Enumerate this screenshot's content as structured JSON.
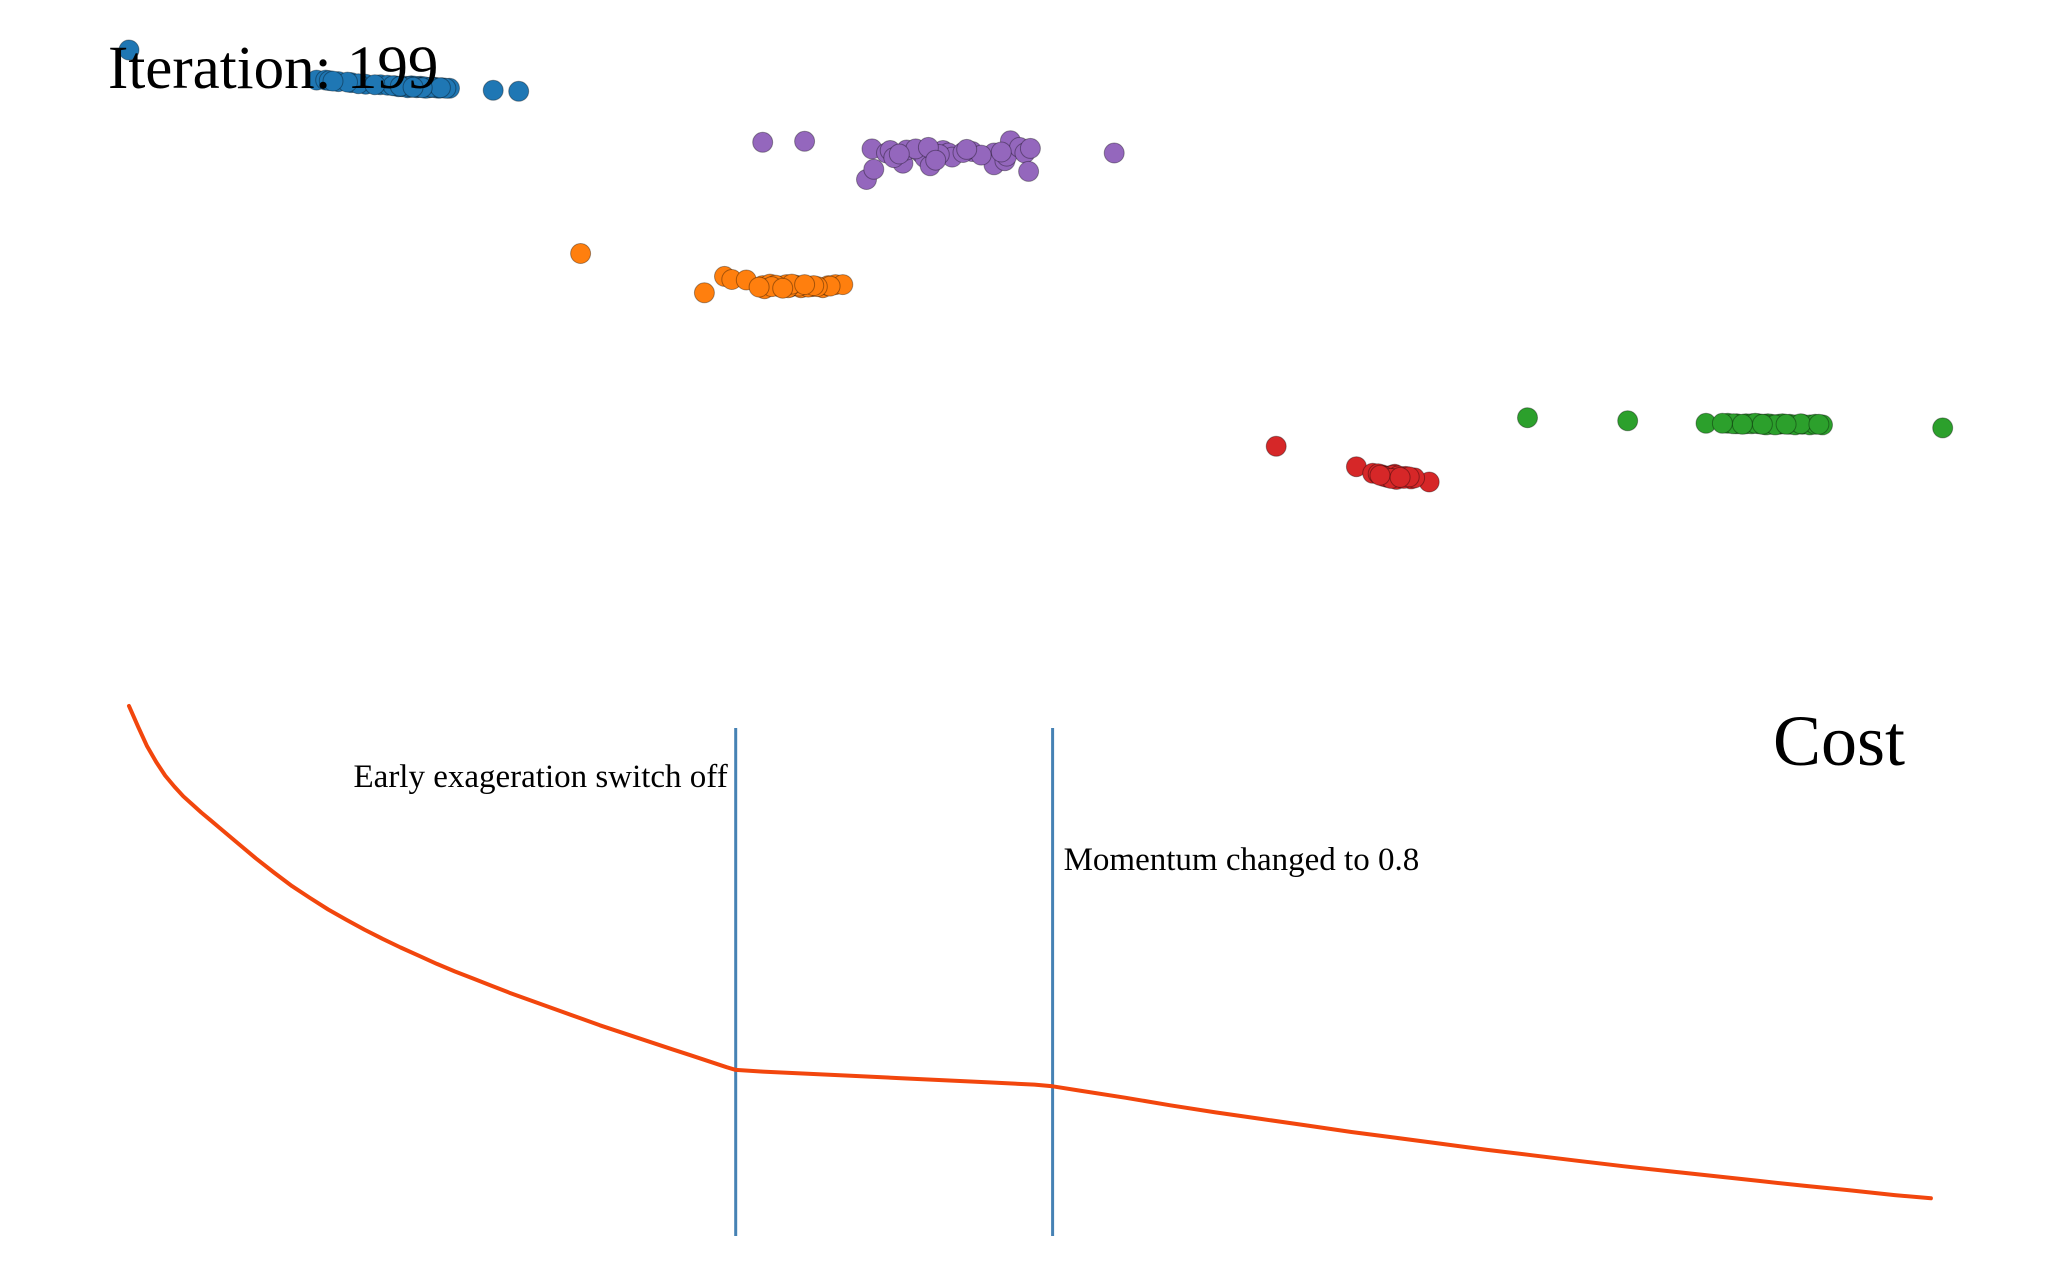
{
  "chart_data": [
    {
      "type": "scatter",
      "title": "Iteration: 199",
      "xlim": [
        0,
        100
      ],
      "ylim": [
        0,
        100
      ],
      "colors": {
        "blue": "#1f77b4",
        "orange": "#ff7f0e",
        "green": "#2ca02c",
        "red": "#d62728",
        "purple": "#9467bd"
      },
      "series": [
        {
          "color": "blue",
          "points": [
            [
              0.0,
              100.0
            ],
            [
              10.3,
              94.1
            ],
            [
              10.8,
              94.1
            ],
            [
              11.5,
              93.8
            ],
            [
              12.2,
              93.6
            ],
            [
              13.0,
              93.3
            ],
            [
              13.8,
              93.2
            ],
            [
              14.6,
              93.0
            ],
            [
              15.2,
              92.9
            ],
            [
              15.8,
              92.8
            ],
            [
              16.3,
              92.7
            ],
            [
              16.8,
              92.7
            ],
            [
              17.2,
              92.6
            ],
            [
              17.6,
              92.5
            ],
            [
              16.0,
              92.9
            ],
            [
              15.5,
              93.0
            ],
            [
              14.2,
              93.1
            ],
            [
              12.6,
              93.4
            ],
            [
              11.0,
              94.0
            ],
            [
              15.0,
              92.8
            ],
            [
              16.5,
              92.6
            ],
            [
              15.8,
              92.6
            ],
            [
              16.3,
              92.5
            ],
            [
              15.5,
              92.7
            ],
            [
              16.0,
              92.7
            ],
            [
              14.8,
              92.8
            ],
            [
              17.0,
              92.5
            ],
            [
              15.3,
              92.6
            ],
            [
              16.8,
              92.6
            ],
            [
              16.2,
              92.8
            ],
            [
              15.7,
              92.9
            ],
            [
              14.5,
              93.0
            ],
            [
              13.5,
              93.2
            ],
            [
              12.0,
              93.7
            ],
            [
              11.2,
              93.9
            ],
            [
              17.4,
              92.5
            ],
            [
              15.9,
              92.7
            ],
            [
              16.6,
              92.7
            ],
            [
              15.4,
              92.8
            ],
            [
              14.9,
              92.9
            ],
            [
              17.1,
              92.6
            ],
            [
              16.1,
              92.6
            ],
            [
              15.6,
              92.7
            ],
            [
              20.0,
              92.1
            ],
            [
              21.4,
              91.9
            ]
          ]
        },
        {
          "color": "orange",
          "points": [
            [
              24.8,
              60.1
            ],
            [
              31.6,
              52.4
            ],
            [
              32.7,
              55.6
            ],
            [
              33.1,
              55.0
            ],
            [
              33.9,
              54.9
            ],
            [
              34.8,
              53.8
            ],
            [
              35.2,
              54.1
            ],
            [
              35.7,
              53.6
            ],
            [
              36.3,
              53.5
            ],
            [
              36.5,
              53.8
            ],
            [
              37.0,
              53.5
            ],
            [
              37.5,
              53.6
            ],
            [
              38.1,
              53.4
            ],
            [
              38.4,
              53.8
            ],
            [
              34.9,
              53.2
            ],
            [
              35.8,
              53.7
            ],
            [
              36.9,
              53.4
            ],
            [
              37.3,
              53.5
            ],
            [
              36.6,
              53.9
            ],
            [
              36.1,
              54.0
            ],
            [
              38.8,
              54.0
            ],
            [
              39.2,
              54.0
            ],
            [
              38.5,
              53.7
            ],
            [
              35.5,
              53.9
            ],
            [
              37.8,
              53.6
            ],
            [
              36.8,
              53.7
            ],
            [
              35.3,
              53.6
            ],
            [
              36.2,
              53.4
            ],
            [
              37.6,
              53.8
            ],
            [
              34.6,
              53.5
            ],
            [
              36.4,
              54.1
            ],
            [
              35.9,
              53.3
            ],
            [
              37.1,
              54.0
            ]
          ]
        },
        {
          "color": "green",
          "points": [
            [
              76.8,
              27.9
            ],
            [
              82.3,
              27.3
            ],
            [
              86.6,
              26.8
            ],
            [
              87.8,
              26.8
            ],
            [
              88.3,
              26.7
            ],
            [
              88.8,
              26.7
            ],
            [
              89.1,
              26.7
            ],
            [
              89.5,
              26.7
            ],
            [
              89.8,
              26.6
            ],
            [
              90.2,
              26.6
            ],
            [
              90.6,
              26.6
            ],
            [
              91.2,
              26.6
            ],
            [
              91.9,
              26.6
            ],
            [
              92.3,
              26.5
            ],
            [
              93.0,
              26.5
            ],
            [
              99.6,
              25.9
            ],
            [
              88.1,
              26.7
            ],
            [
              89.3,
              26.8
            ],
            [
              90.0,
              26.7
            ],
            [
              91.5,
              26.5
            ],
            [
              92.6,
              26.6
            ],
            [
              88.6,
              26.6
            ],
            [
              89.9,
              26.5
            ],
            [
              90.8,
              26.7
            ],
            [
              91.8,
              26.7
            ],
            [
              92.8,
              26.6
            ],
            [
              87.5,
              26.8
            ],
            [
              90.4,
              26.5
            ],
            [
              89.7,
              26.6
            ],
            [
              91.0,
              26.6
            ]
          ]
        },
        {
          "color": "red",
          "points": [
            [
              63.0,
              22.3
            ],
            [
              67.4,
              18.3
            ],
            [
              68.3,
              17.0
            ],
            [
              68.8,
              16.7
            ],
            [
              69.2,
              16.5
            ],
            [
              69.5,
              16.8
            ],
            [
              69.9,
              16.3
            ],
            [
              70.4,
              15.9
            ],
            [
              71.4,
              15.3
            ],
            [
              69.6,
              15.8
            ],
            [
              69.1,
              16.2
            ],
            [
              70.1,
              16.4
            ],
            [
              68.6,
              16.9
            ],
            [
              70.6,
              16.1
            ],
            [
              69.4,
              16.6
            ],
            [
              68.9,
              16.4
            ],
            [
              70.0,
              16.0
            ],
            [
              69.7,
              16.5
            ],
            [
              69.3,
              16.0
            ],
            [
              70.3,
              16.3
            ],
            [
              68.7,
              16.6
            ],
            [
              69.8,
              16.2
            ]
          ]
        },
        {
          "color": "purple",
          "points": [
            [
              34.8,
              81.9
            ],
            [
              37.1,
              82.1
            ],
            [
              40.8,
              80.6
            ],
            [
              41.6,
              79.8
            ],
            [
              41.8,
              80.3
            ],
            [
              42.5,
              77.8
            ],
            [
              42.7,
              80.4
            ],
            [
              43.5,
              79.8
            ],
            [
              43.7,
              78.9
            ],
            [
              44.0,
              77.3
            ],
            [
              44.7,
              80.3
            ],
            [
              45.0,
              79.8
            ],
            [
              45.2,
              79.0
            ],
            [
              46.3,
              80.1
            ],
            [
              47.5,
              79.8
            ],
            [
              47.5,
              77.5
            ],
            [
              48.1,
              78.3
            ],
            [
              48.2,
              79.2
            ],
            [
              48.4,
              82.2
            ],
            [
              48.9,
              80.9
            ],
            [
              49.2,
              79.8
            ],
            [
              49.4,
              76.2
            ],
            [
              49.5,
              80.7
            ],
            [
              40.5,
              74.6
            ],
            [
              40.9,
              76.6
            ],
            [
              54.1,
              79.8
            ],
            [
              42.0,
              78.9
            ],
            [
              43.2,
              80.6
            ],
            [
              44.5,
              79.5
            ],
            [
              45.8,
              79.9
            ],
            [
              46.8,
              79.4
            ],
            [
              47.9,
              80.0
            ],
            [
              43.9,
              80.9
            ],
            [
              42.3,
              79.6
            ],
            [
              44.3,
              78.4
            ],
            [
              46.0,
              80.5
            ]
          ]
        }
      ]
    },
    {
      "type": "line",
      "title": "Cost",
      "xlim": [
        0,
        200
      ],
      "ylim": [
        0,
        1
      ],
      "color": "#f2460d",
      "x": [
        0,
        1,
        2,
        3,
        4,
        5,
        6,
        7,
        8,
        9,
        10,
        12,
        14,
        16,
        18,
        20,
        22,
        24,
        26,
        28,
        30,
        32,
        34,
        36,
        38,
        40,
        42,
        44,
        46,
        48,
        50,
        52,
        54,
        56,
        58,
        60,
        62,
        64,
        66,
        67,
        70,
        75,
        80,
        85,
        90,
        95,
        100,
        102,
        105,
        110,
        115,
        120,
        125,
        130,
        135,
        140,
        145,
        150,
        155,
        160,
        165,
        170,
        175,
        180,
        185,
        190,
        195,
        199
      ],
      "y": [
        1.0,
        0.962,
        0.926,
        0.897,
        0.872,
        0.852,
        0.834,
        0.819,
        0.804,
        0.79,
        0.776,
        0.748,
        0.72,
        0.694,
        0.669,
        0.647,
        0.626,
        0.607,
        0.589,
        0.572,
        0.556,
        0.541,
        0.526,
        0.512,
        0.499,
        0.486,
        0.473,
        0.461,
        0.449,
        0.437,
        0.425,
        0.413,
        0.402,
        0.391,
        0.38,
        0.369,
        0.358,
        0.347,
        0.336,
        0.331,
        0.328,
        0.324,
        0.32,
        0.316,
        0.312,
        0.308,
        0.304,
        0.301,
        0.293,
        0.28,
        0.266,
        0.253,
        0.241,
        0.229,
        0.217,
        0.206,
        0.195,
        0.184,
        0.174,
        0.164,
        0.154,
        0.145,
        0.136,
        0.127,
        0.118,
        0.11,
        0.101,
        0.095
      ],
      "annotations": [
        {
          "x": 67,
          "text": "Early exageration switch off",
          "side": "left"
        },
        {
          "x": 102,
          "text": "Momentum changed to 0.8",
          "side": "right"
        }
      ]
    }
  ]
}
